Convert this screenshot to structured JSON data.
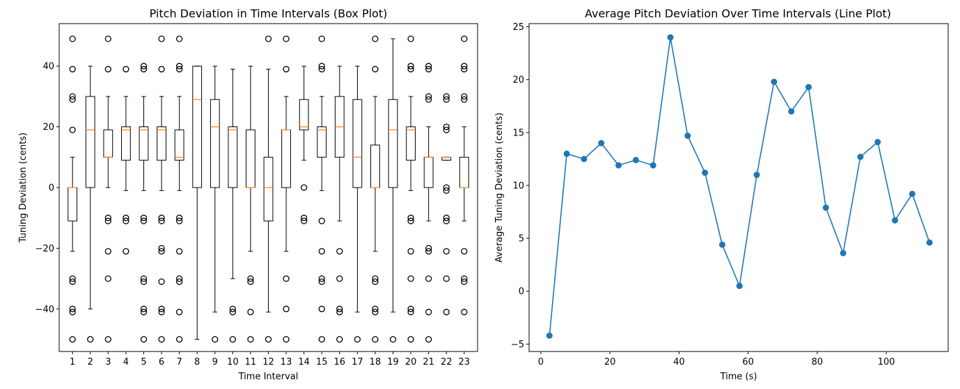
{
  "chart_data": [
    {
      "type": "box",
      "title": "Pitch Deviation in Time Intervals (Box Plot)",
      "xlabel": "Time Interval",
      "ylabel": "Tuning Deviation (cents)",
      "ylim": [
        -54,
        54
      ],
      "yticks": [
        -40,
        -20,
        0,
        20,
        40
      ],
      "colors": {
        "box": "#000000",
        "median": "#ff7f0e"
      },
      "categories": [
        "1",
        "2",
        "3",
        "4",
        "5",
        "6",
        "7",
        "8",
        "9",
        "10",
        "11",
        "12",
        "13",
        "14",
        "15",
        "16",
        "17",
        "18",
        "19",
        "20",
        "21",
        "22",
        "23"
      ],
      "boxes": [
        {
          "q1": -11,
          "median": 0,
          "q3": 0,
          "whislo": -21,
          "whishi": 10,
          "fliers": [
            -50,
            -41,
            -40,
            -31,
            -30,
            19,
            29,
            30,
            39,
            49
          ]
        },
        {
          "q1": 0,
          "median": 19,
          "q3": 30,
          "whislo": -40,
          "whishi": 40,
          "fliers": [
            -50
          ]
        },
        {
          "q1": 10,
          "median": 10,
          "q3": 19,
          "whislo": 0,
          "whishi": 30,
          "fliers": [
            -50,
            -30,
            -21,
            -11,
            -10,
            39,
            49
          ]
        },
        {
          "q1": 9,
          "median": 19,
          "q3": 20,
          "whislo": -1,
          "whishi": 30,
          "fliers": [
            -21,
            -11,
            -10,
            39
          ]
        },
        {
          "q1": 9,
          "median": 19,
          "q3": 20,
          "whislo": -1,
          "whishi": 30,
          "fliers": [
            -50,
            -41,
            -40,
            -31,
            -30,
            -11,
            -10,
            39,
            40
          ]
        },
        {
          "q1": 9,
          "median": 19,
          "q3": 20,
          "whislo": -1,
          "whishi": 30,
          "fliers": [
            -50,
            -41,
            -40,
            -31,
            -21,
            -20,
            -11,
            -10,
            39,
            49
          ]
        },
        {
          "q1": 9,
          "median": 10,
          "q3": 19,
          "whislo": -1,
          "whishi": 30,
          "fliers": [
            -50,
            -41,
            -31,
            -30,
            -21,
            -11,
            -10,
            39,
            40,
            49
          ]
        },
        {
          "q1": 0,
          "median": 29,
          "q3": 40,
          "whislo": -50,
          "whishi": 40,
          "fliers": []
        },
        {
          "q1": 0,
          "median": 20,
          "q3": 29,
          "whislo": -41,
          "whishi": 40,
          "fliers": [
            -50
          ]
        },
        {
          "q1": 0,
          "median": 19,
          "q3": 20,
          "whislo": -30,
          "whishi": 39,
          "fliers": [
            -50,
            -41,
            -40
          ]
        },
        {
          "q1": 0,
          "median": 0,
          "q3": 19,
          "whislo": -21,
          "whishi": 40,
          "fliers": [
            -50,
            -41,
            -31,
            -30
          ]
        },
        {
          "q1": -11,
          "median": 0,
          "q3": 10,
          "whislo": -41,
          "whishi": 39,
          "fliers": [
            -50,
            49
          ]
        },
        {
          "q1": 0,
          "median": 19,
          "q3": 19,
          "whislo": -21,
          "whishi": 30,
          "fliers": [
            -50,
            -40,
            -30,
            39,
            49
          ]
        },
        {
          "q1": 19,
          "median": 20,
          "q3": 29,
          "whislo": 9,
          "whishi": 40,
          "fliers": [
            -11,
            -10,
            0
          ]
        },
        {
          "q1": 10,
          "median": 19,
          "q3": 20,
          "whislo": -1,
          "whishi": 30,
          "fliers": [
            -50,
            -40,
            -31,
            -30,
            -21,
            -11,
            39,
            40,
            49
          ]
        },
        {
          "q1": 10,
          "median": 20,
          "q3": 30,
          "whislo": -11,
          "whishi": 40,
          "fliers": [
            -50,
            -41,
            -40,
            -30,
            -21
          ]
        },
        {
          "q1": 0,
          "median": 10,
          "q3": 29,
          "whislo": -41,
          "whishi": 40,
          "fliers": [
            -50
          ]
        },
        {
          "q1": 0,
          "median": 0,
          "q3": 14,
          "whislo": -21,
          "whishi": 30,
          "fliers": [
            -50,
            -41,
            -40,
            -31,
            -30,
            39,
            49
          ]
        },
        {
          "q1": 0,
          "median": 19,
          "q3": 29,
          "whislo": -41,
          "whishi": 49,
          "fliers": [
            -50
          ]
        },
        {
          "q1": 9,
          "median": 19,
          "q3": 20,
          "whislo": -1,
          "whishi": 30,
          "fliers": [
            -50,
            -41,
            -40,
            -30,
            -21,
            -11,
            -10,
            39,
            40,
            49
          ]
        },
        {
          "q1": 0,
          "median": 10,
          "q3": 10,
          "whislo": -11,
          "whishi": 20,
          "fliers": [
            -50,
            -41,
            -30,
            -21,
            -20,
            29,
            30,
            39,
            40
          ]
        },
        {
          "q1": 9,
          "median": 10,
          "q3": 10,
          "whislo": 9,
          "whishi": 10,
          "fliers": [
            -41,
            -30,
            -21,
            -11,
            -10,
            -1,
            0,
            19,
            20,
            29,
            30
          ]
        },
        {
          "q1": 0,
          "median": 0,
          "q3": 10,
          "whislo": -11,
          "whishi": 20,
          "fliers": [
            -41,
            -31,
            -30,
            -21,
            29,
            30,
            39,
            40,
            49
          ]
        }
      ]
    },
    {
      "type": "line",
      "title": "Average Pitch Deviation Over Time Intervals (Line Plot)",
      "xlabel": "Time (s)",
      "ylabel": "Average Tuning Deviation (cents)",
      "xlim": [
        -3.4,
        117.9
      ],
      "ylim": [
        -5.7,
        25.3
      ],
      "xticks": [
        0,
        20,
        40,
        60,
        80,
        100
      ],
      "yticks": [
        -5,
        0,
        5,
        10,
        15,
        20,
        25
      ],
      "colors": {
        "line": "#1f77b4"
      },
      "x": [
        2.5,
        7.5,
        12.5,
        17.5,
        22.5,
        27.5,
        32.5,
        37.5,
        42.5,
        47.5,
        52.5,
        57.5,
        62.5,
        67.5,
        72.5,
        77.5,
        82.5,
        87.5,
        92.5,
        97.5,
        102.5,
        107.5,
        112.5
      ],
      "y": [
        -4.2,
        13.0,
        12.5,
        14.0,
        11.9,
        12.4,
        11.9,
        24.0,
        14.7,
        11.2,
        4.4,
        0.5,
        11.0,
        19.8,
        17.0,
        19.3,
        7.9,
        3.6,
        12.7,
        14.1,
        6.7,
        9.2,
        4.6
      ]
    }
  ]
}
